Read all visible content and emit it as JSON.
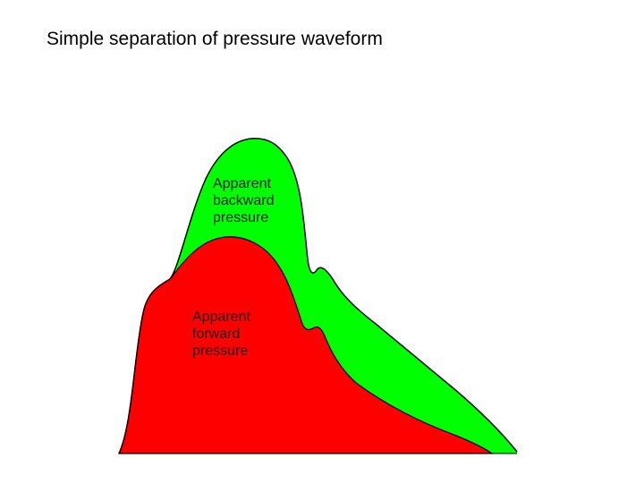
{
  "title": "Simple separation of pressure waveform",
  "regions": {
    "backward": {
      "label_lines": [
        "Apparent",
        "backward",
        "pressure"
      ],
      "color": "#00ff00"
    },
    "forward": {
      "label_lines": [
        "Apparent",
        "forward",
        "pressure"
      ],
      "color": "#ff0000"
    }
  },
  "outline_color": "#000000"
}
